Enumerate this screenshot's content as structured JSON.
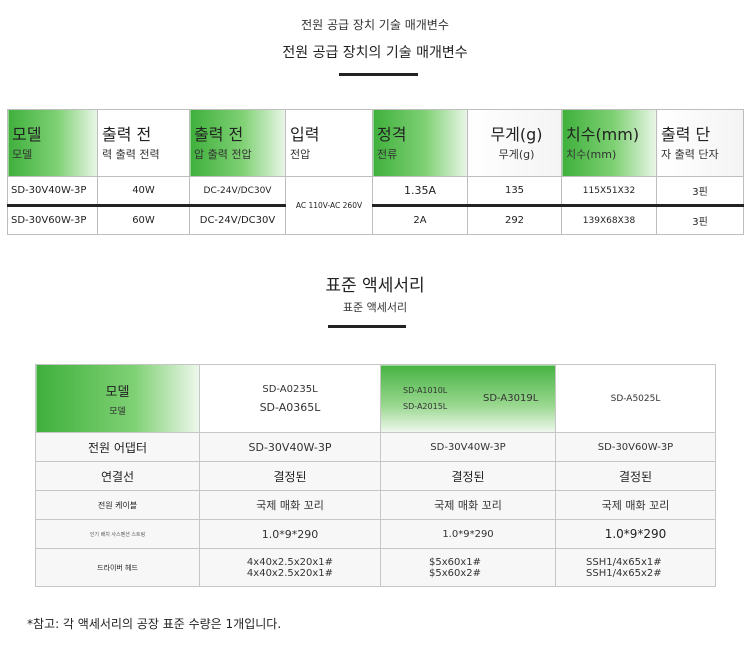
{
  "titles": {
    "section1_small": "전원 공급 장치 기술 매개변수",
    "section1_main": "전원 공급 장치의 기술 매개변수",
    "section2_main": "표준 액세서리",
    "section2_small": "표준 액세서리"
  },
  "spec_table": {
    "headers": [
      {
        "main": "모델",
        "sub": "모델"
      },
      {
        "main": "출력 전",
        "sub": "력 출력 전력"
      },
      {
        "main": "출력 전",
        "sub": "압 출력 전압"
      },
      {
        "main": "입력",
        "sub": "전압"
      },
      {
        "main": "정격",
        "sub": "전류"
      },
      {
        "main": "무게(g)",
        "sub": "무게(g)"
      },
      {
        "main": "치수(mm)",
        "sub": "치수(mm)"
      },
      {
        "main": "출력 단",
        "sub": "자 출력 단자"
      }
    ],
    "rows": [
      {
        "model": "SD-30V40W-3P",
        "power": "40W",
        "voltage": "DC-24V/DC30V",
        "current": "1.35A",
        "weight": "135",
        "size": "115X51X32",
        "terminal": "3핀"
      },
      {
        "model": "SD-30V60W-3P",
        "power": "60W",
        "voltage": "DC-24V/DC30V",
        "current": "2A",
        "weight": "292",
        "size": "139X68X38",
        "terminal": "3핀"
      }
    ],
    "input_shared": "AC 110V-AC 260V"
  },
  "acc_table": {
    "header": {
      "model_main": "모델",
      "model_sub": "모델",
      "col1_a": "SD-A0235L",
      "col1_b": "SD-A0365L",
      "col2_a": "SD-A1010L",
      "col2_b": "SD-A2015L",
      "col2_c": "SD-A3019L",
      "col3": "SD-A5025L"
    },
    "rows": [
      {
        "label": "전원 어댑터",
        "v1": "SD-30V40W-3P",
        "v2": "SD-30V40W-3P",
        "v3": "SD-30V60W-3P"
      },
      {
        "label": "연결선",
        "v1": "결정된",
        "v2": "결정된",
        "v3": "결정된"
      },
      {
        "label": "전원 케이블",
        "v1": "국제 매화 꼬리",
        "v2": "국제 매화 꼬리",
        "v3": "국제 매화 꼬리"
      },
      {
        "label": "인기 배치 사스펜션 스트링",
        "v1": "1.0*9*290",
        "v2": "1.0*9*290",
        "v3": "1.0*9*290"
      },
      {
        "label": "드라이버 헤드",
        "v1a": "4x40x2.5x20x1#",
        "v1b": "4x40x2.5x20x1#",
        "v2a": "$5x60x1#",
        "v2b": "$5x60x2#",
        "v3a": "SSH1/4x65x1#",
        "v3b": "SSH1/4x65x2#"
      }
    ]
  },
  "note": "*참고: 각 액세서리의 공장 표준 수량은 1개입니다.",
  "colors": {
    "accent_green": "#3fb03c",
    "border": "#bdbdbd",
    "bar": "#222222"
  }
}
